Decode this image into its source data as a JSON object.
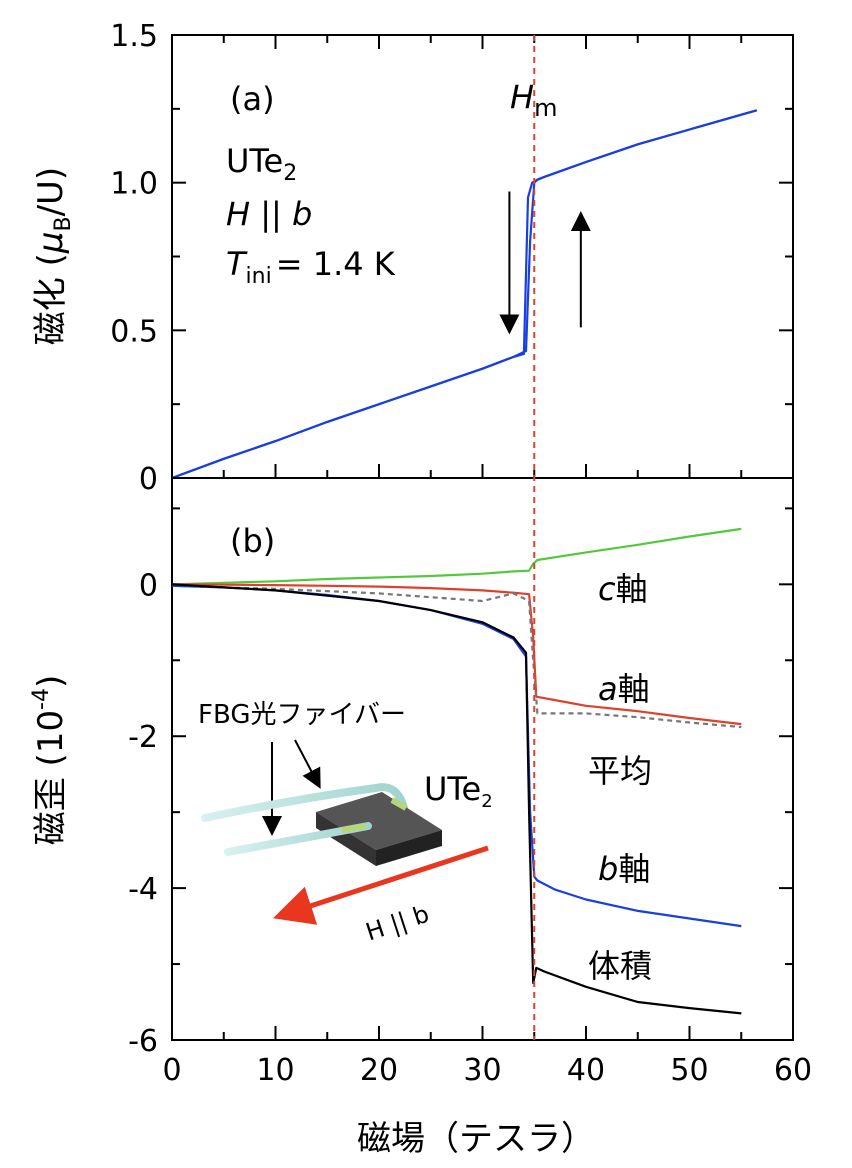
{
  "chart_data": [
    {
      "type": "line",
      "panel_label": "(a)",
      "ylabel": "磁化 (μB/U)",
      "ylabel_parts": {
        "main": "磁化 (",
        "mu": "μ",
        "sub": "B",
        "end": "/U)"
      },
      "xlim": [
        0,
        60
      ],
      "ylim": [
        0,
        1.5
      ],
      "yticks": [
        0,
        0.5,
        1.0,
        1.5
      ],
      "ytick_labels": [
        "0",
        "0.5",
        "1.0",
        "1.5"
      ],
      "annotations": {
        "compound_main": "UTe",
        "compound_sub": "2",
        "field_h": "H",
        "field_par": " || ",
        "field_b": "b",
        "temp_t": "T",
        "temp_sub": "ini",
        "temp_val": "= 1.4 K",
        "hm_h": "H",
        "hm_sub": "m"
      },
      "series": [
        {
          "color": "#1a3fe0",
          "x": [
            0,
            5,
            10,
            15,
            20,
            25,
            30,
            33,
            34.2,
            34.6,
            35.0,
            35.3,
            36,
            40,
            45,
            50,
            55,
            56.5
          ],
          "values": [
            0,
            0.065,
            0.125,
            0.19,
            0.25,
            0.31,
            0.37,
            0.41,
            0.43,
            0.8,
            1.0,
            1.01,
            1.02,
            1.07,
            1.13,
            1.18,
            1.23,
            1.245
          ]
        },
        {
          "color": "#1a3fe0",
          "x": [
            0,
            5,
            10,
            15,
            20,
            25,
            30,
            33,
            34.0,
            34.4,
            34.8,
            35.3,
            36,
            40,
            45,
            50,
            55,
            56.5
          ],
          "values": [
            0,
            0.065,
            0.125,
            0.19,
            0.25,
            0.31,
            0.37,
            0.41,
            0.42,
            0.95,
            1.0,
            1.01,
            1.02,
            1.07,
            1.13,
            1.18,
            1.23,
            1.245
          ]
        }
      ],
      "arrows": [
        {
          "x": 32.6,
          "y_from": 0.97,
          "y_to": 0.52,
          "direction": "down"
        },
        {
          "x": 39.5,
          "y_from": 0.51,
          "y_to": 0.87,
          "direction": "up"
        }
      ]
    },
    {
      "type": "line",
      "panel_label": "(b)",
      "ylabel": "磁歪 (10-4)",
      "ylabel_parts": {
        "main": "磁歪 (10",
        "sup": "-4",
        "end": ")"
      },
      "xlabel": "磁場（テスラ）",
      "xlim": [
        0,
        60
      ],
      "ylim": [
        -6,
        1.4
      ],
      "xticks": [
        0,
        10,
        20,
        30,
        40,
        50,
        60
      ],
      "xtick_labels": [
        "0",
        "10",
        "20",
        "30",
        "40",
        "50",
        "60"
      ],
      "yticks": [
        -6,
        -4,
        -2,
        0
      ],
      "ytick_labels": [
        "-6",
        "-4",
        "-2",
        "0"
      ],
      "series": [
        {
          "name": "c軸",
          "name_italic": "c",
          "name_rest": "軸",
          "color": "#52c93a",
          "x": [
            0,
            5,
            10,
            15,
            20,
            25,
            30,
            33,
            34.5,
            34.9,
            35.3,
            40,
            45,
            50,
            55
          ],
          "values": [
            0.0,
            0.02,
            0.04,
            0.07,
            0.09,
            0.11,
            0.14,
            0.17,
            0.18,
            0.27,
            0.32,
            0.42,
            0.52,
            0.63,
            0.73
          ]
        },
        {
          "name": "a軸",
          "name_italic": "a",
          "name_rest": "軸",
          "color": "#e0402a",
          "x": [
            0,
            5,
            10,
            15,
            20,
            25,
            30,
            33,
            34.5,
            34.9,
            35.2,
            38,
            40,
            45,
            50,
            55
          ],
          "values": [
            0.0,
            -0.005,
            -0.01,
            -0.02,
            -0.03,
            -0.05,
            -0.08,
            -0.11,
            -0.13,
            -0.7,
            -1.48,
            -1.55,
            -1.6,
            -1.67,
            -1.76,
            -1.84
          ]
        },
        {
          "name": "平均",
          "color": "#777777",
          "dashed": true,
          "x": [
            0,
            10,
            20,
            30,
            33,
            34.5,
            34.9,
            35.3,
            40,
            45,
            50,
            55
          ],
          "values": [
            -0.02,
            -0.06,
            -0.12,
            -0.22,
            -0.12,
            -0.22,
            -1.0,
            -1.7,
            -1.7,
            -1.75,
            -1.82,
            -1.88
          ]
        },
        {
          "name": "b軸",
          "name_italic": "b",
          "name_rest": "軸",
          "color": "#1a3fe0",
          "x": [
            0,
            5,
            10,
            15,
            20,
            25,
            30,
            33,
            34.2,
            34.6,
            35.0,
            35.3,
            37,
            40,
            45,
            50,
            55
          ],
          "values": [
            -0.02,
            -0.04,
            -0.08,
            -0.14,
            -0.22,
            -0.34,
            -0.52,
            -0.72,
            -0.95,
            -3.0,
            -3.85,
            -3.9,
            -4.02,
            -4.15,
            -4.3,
            -4.4,
            -4.5
          ]
        },
        {
          "name": "体積",
          "color": "#000000",
          "x": [
            0,
            5,
            10,
            15,
            20,
            25,
            30,
            33,
            34.2,
            34.5,
            34.9,
            35.2,
            36,
            40,
            45,
            50,
            55
          ],
          "values": [
            0.0,
            -0.04,
            -0.08,
            -0.15,
            -0.22,
            -0.34,
            -0.5,
            -0.7,
            -0.9,
            -3.0,
            -5.25,
            -5.05,
            -5.1,
            -5.3,
            -5.5,
            -5.58,
            -5.65
          ]
        }
      ],
      "inset": {
        "fiber_label": "FBG光ファイバー",
        "sample_main": "UTe",
        "sample_sub": "2",
        "field_label": "H || b"
      }
    }
  ],
  "hm_field_value": 35,
  "colors": {
    "blue": "#1a3fe0",
    "green": "#52c93a",
    "red": "#e0402a",
    "gray": "#777777",
    "black": "#000000",
    "dashed_line": "#e0402a"
  }
}
